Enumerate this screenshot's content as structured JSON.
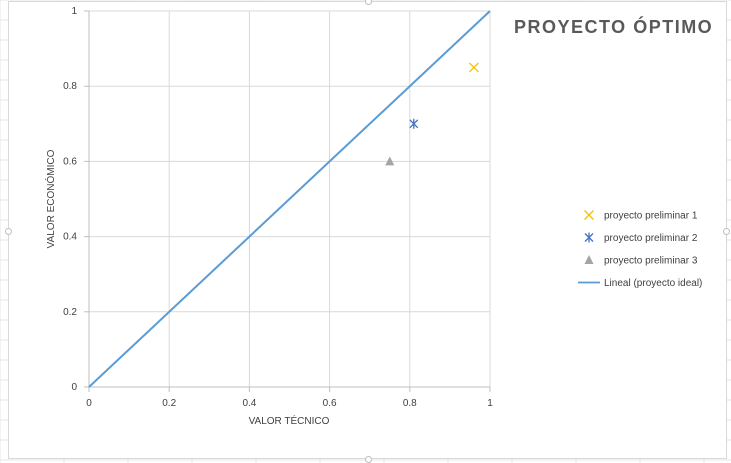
{
  "chart_data": {
    "type": "scatter",
    "title": "PROYECTO ÓPTIMO",
    "xlabel": "VALOR TÉCNICO",
    "ylabel": "VALOR ECONÓMICO",
    "xlim": [
      0,
      1
    ],
    "ylim": [
      0,
      1
    ],
    "x_ticks": [
      "0",
      "0.2",
      "0.4",
      "0.6",
      "0.8",
      "1"
    ],
    "y_ticks": [
      "0",
      "0.2",
      "0.4",
      "0.6",
      "0.8",
      "1"
    ],
    "grid": true,
    "legend_position": "right",
    "series": [
      {
        "name": "proyecto preliminar 1",
        "marker": "x",
        "color": "#f2c200",
        "points": [
          [
            0.96,
            0.85
          ]
        ]
      },
      {
        "name": "proyecto preliminar 2",
        "marker": "star",
        "color": "#4472c4",
        "points": [
          [
            0.81,
            0.7
          ]
        ]
      },
      {
        "name": "proyecto preliminar 3",
        "marker": "triangle",
        "color": "#a5a5a5",
        "points": [
          [
            0.75,
            0.6
          ]
        ]
      },
      {
        "name": "Lineal (proyecto ideal)",
        "marker": "line",
        "color": "#5b9bd5",
        "points": [
          [
            0,
            0
          ],
          [
            1,
            1
          ]
        ]
      }
    ]
  }
}
